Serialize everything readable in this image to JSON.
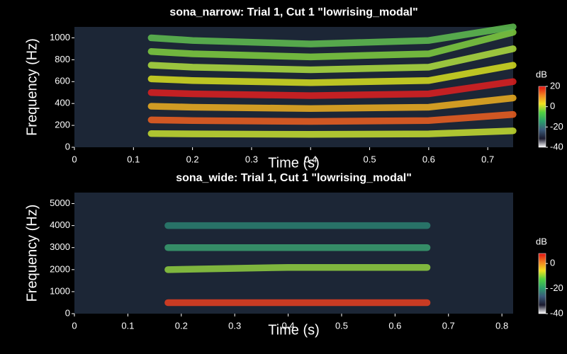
{
  "chart_data": [
    {
      "type": "spectrogram",
      "title": "sona_narrow: Trial 1, Cut 1 \"lowrising_modal\"",
      "x_label": "Time (s)",
      "y_label": "Frequency (Hz)",
      "colorbar_label": "dB",
      "xlim": [
        0,
        0.743
      ],
      "ylim": [
        0,
        1100
      ],
      "xticks": [
        0,
        0.1,
        0.2,
        0.3,
        0.4,
        0.5,
        0.6,
        0.7
      ],
      "yticks": [
        0,
        200,
        400,
        600,
        800,
        1000
      ],
      "clim": [
        -40,
        20
      ],
      "cticks": [
        20,
        0,
        -20,
        -40
      ],
      "colormap": [
        "#ffffff",
        "#1a1a2e",
        "#3a5a7a",
        "#2aa06a",
        "#50d040",
        "#f0e020",
        "#f08020",
        "#e01010"
      ],
      "x": [
        0.13,
        0.2,
        0.4,
        0.6,
        0.743
      ],
      "series": [
        {
          "color": "#c8e030",
          "values": [
            125,
            122,
            118,
            122,
            150
          ]
        },
        {
          "color": "#f06020",
          "values": [
            250,
            244,
            236,
            244,
            300
          ]
        },
        {
          "color": "#f0b020",
          "values": [
            375,
            366,
            354,
            366,
            450
          ]
        },
        {
          "color": "#e02020",
          "values": [
            500,
            488,
            472,
            488,
            600
          ]
        },
        {
          "color": "#d8e020",
          "values": [
            625,
            610,
            590,
            610,
            750
          ]
        },
        {
          "color": "#b0e040",
          "values": [
            750,
            732,
            708,
            732,
            900
          ]
        },
        {
          "color": "#80d040",
          "values": [
            875,
            854,
            826,
            854,
            1050
          ]
        },
        {
          "color": "#60c050",
          "values": [
            1000,
            976,
            944,
            976,
            1100
          ]
        }
      ]
    },
    {
      "type": "spectrogram",
      "title": "sona_wide: Trial 1, Cut 1 \"lowrising_modal\"",
      "x_label": "Time (s)",
      "y_label": "Frequency (Hz)",
      "colorbar_label": "dB",
      "xlim": [
        0,
        0.821
      ],
      "ylim": [
        0,
        5500
      ],
      "xticks": [
        0,
        0.1,
        0.2,
        0.3,
        0.4,
        0.5,
        0.6,
        0.7,
        0.8
      ],
      "yticks": [
        0,
        1000,
        2000,
        3000,
        4000,
        5000
      ],
      "clim": [
        -40,
        8
      ],
      "cticks": [
        0,
        -20,
        -40
      ],
      "colormap": [
        "#ffffff",
        "#1a1a2e",
        "#3a5a7a",
        "#2aa06a",
        "#50d040",
        "#f0e020",
        "#f08020",
        "#e01010"
      ],
      "x": [
        0.175,
        0.4,
        0.66
      ],
      "series": [
        {
          "color": "#e84020",
          "values": [
            500,
            500,
            500
          ]
        },
        {
          "color": "#90d040",
          "values": [
            2000,
            2100,
            2100
          ]
        },
        {
          "color": "#3aa070",
          "values": [
            3000,
            3000,
            3000
          ]
        },
        {
          "color": "#2a8070",
          "values": [
            4000,
            4000,
            4000
          ]
        }
      ]
    }
  ]
}
